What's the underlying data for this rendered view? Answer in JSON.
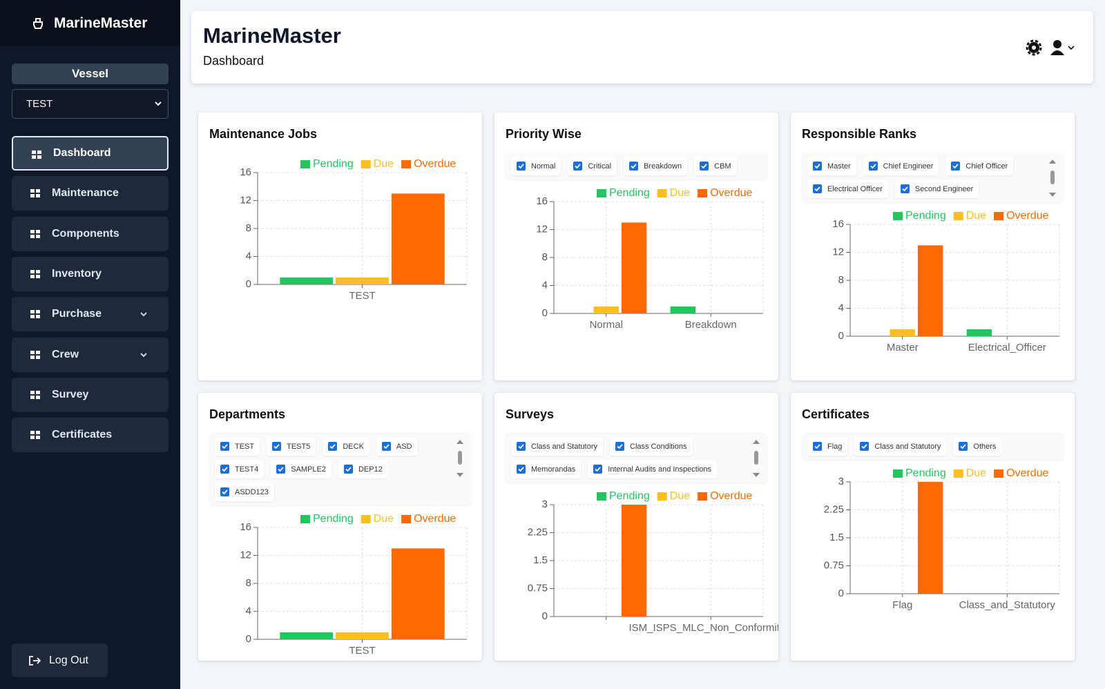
{
  "sidebar": {
    "brand": "MarineMaster",
    "vessel_label": "Vessel",
    "vessel": "TEST",
    "nav": [
      "Dashboard",
      "Maintenance",
      "Components",
      "Inventory",
      "Purchase",
      "Crew",
      "Survey",
      "Certificates"
    ],
    "logout": "Log Out"
  },
  "header": {
    "title": "MarineMaster",
    "subtitle": "Dashboard"
  },
  "chart_data": [
    {
      "type": "bar",
      "title": "Maintenance Jobs",
      "categories": [
        "TEST"
      ],
      "series": [
        {
          "name": "Pending",
          "color": "#22c55e",
          "values": [
            1
          ]
        },
        {
          "name": "Due",
          "color": "#fbbf24",
          "values": [
            1
          ]
        },
        {
          "name": "Overdue",
          "color": "#ff6a00",
          "values": [
            13
          ]
        }
      ],
      "ylim": [
        0,
        16
      ],
      "yticks": [
        0,
        4,
        8,
        12,
        16
      ],
      "grid": true
    },
    {
      "type": "bar",
      "title": "Priority Wise",
      "filters": [
        "Normal",
        "Critical",
        "Breakdown",
        "CBM"
      ],
      "categories": [
        "Normal",
        "Breakdown"
      ],
      "series": [
        {
          "name": "Pending",
          "color": "#22c55e",
          "values": [
            0,
            1
          ]
        },
        {
          "name": "Due",
          "color": "#fbbf24",
          "values": [
            1,
            0
          ]
        },
        {
          "name": "Overdue",
          "color": "#ff6a00",
          "values": [
            13,
            0
          ]
        }
      ],
      "ylim": [
        0,
        16
      ],
      "yticks": [
        0,
        4,
        8,
        12,
        16
      ],
      "grid": true
    },
    {
      "type": "bar",
      "title": "Responsible Ranks",
      "filters": [
        "Master",
        "Chief Engineer",
        "Chief Officer",
        "Electrical Officer",
        "Second Engineer"
      ],
      "categories": [
        "Master",
        "Electrical_Officer"
      ],
      "series": [
        {
          "name": "Pending",
          "color": "#22c55e",
          "values": [
            0,
            1
          ]
        },
        {
          "name": "Due",
          "color": "#fbbf24",
          "values": [
            1,
            0
          ]
        },
        {
          "name": "Overdue",
          "color": "#ff6a00",
          "values": [
            13,
            0
          ]
        }
      ],
      "ylim": [
        0,
        16
      ],
      "yticks": [
        0,
        4,
        8,
        12,
        16
      ],
      "grid": true
    },
    {
      "type": "bar",
      "title": "Departments",
      "filters": [
        "TEST",
        "TEST5",
        "DECK",
        "ASD",
        "TEST4",
        "SAMPLE2",
        "DEP12",
        "ASDD123"
      ],
      "categories": [
        "TEST"
      ],
      "series": [
        {
          "name": "Pending",
          "color": "#22c55e",
          "values": [
            1
          ]
        },
        {
          "name": "Due",
          "color": "#fbbf24",
          "values": [
            1
          ]
        },
        {
          "name": "Overdue",
          "color": "#ff6a00",
          "values": [
            13
          ]
        }
      ],
      "ylim": [
        0,
        16
      ],
      "yticks": [
        0,
        4,
        8,
        12,
        16
      ],
      "grid": true
    },
    {
      "type": "bar",
      "title": "Surveys",
      "filters": [
        "Class and Statutory",
        "Class Conditions",
        "Memorandas",
        "Internal Audits and Inspections"
      ],
      "categories": [
        null,
        "ISM_ISPS_MLC_Non_Conformities"
      ],
      "series": [
        {
          "name": "Pending",
          "color": "#22c55e",
          "values": [
            0,
            0
          ]
        },
        {
          "name": "Due",
          "color": "#fbbf24",
          "values": [
            0,
            0
          ]
        },
        {
          "name": "Overdue",
          "color": "#ff6a00",
          "values": [
            3,
            0
          ]
        }
      ],
      "ylim": [
        0,
        3
      ],
      "yticks": [
        0,
        0.75,
        1.5,
        2.25,
        3
      ],
      "grid": true
    },
    {
      "type": "bar",
      "title": "Certificates",
      "filters": [
        "Flag",
        "Class and Statutory",
        "Others"
      ],
      "categories": [
        "Flag",
        "Class_and_Statutory"
      ],
      "series": [
        {
          "name": "Pending",
          "color": "#22c55e",
          "values": [
            0,
            0
          ]
        },
        {
          "name": "Due",
          "color": "#fbbf24",
          "values": [
            0,
            0
          ]
        },
        {
          "name": "Overdue",
          "color": "#ff6a00",
          "values": [
            3,
            0
          ]
        }
      ],
      "ylim": [
        0,
        3
      ],
      "yticks": [
        0,
        0.75,
        1.5,
        2.25,
        3
      ],
      "grid": true
    }
  ]
}
